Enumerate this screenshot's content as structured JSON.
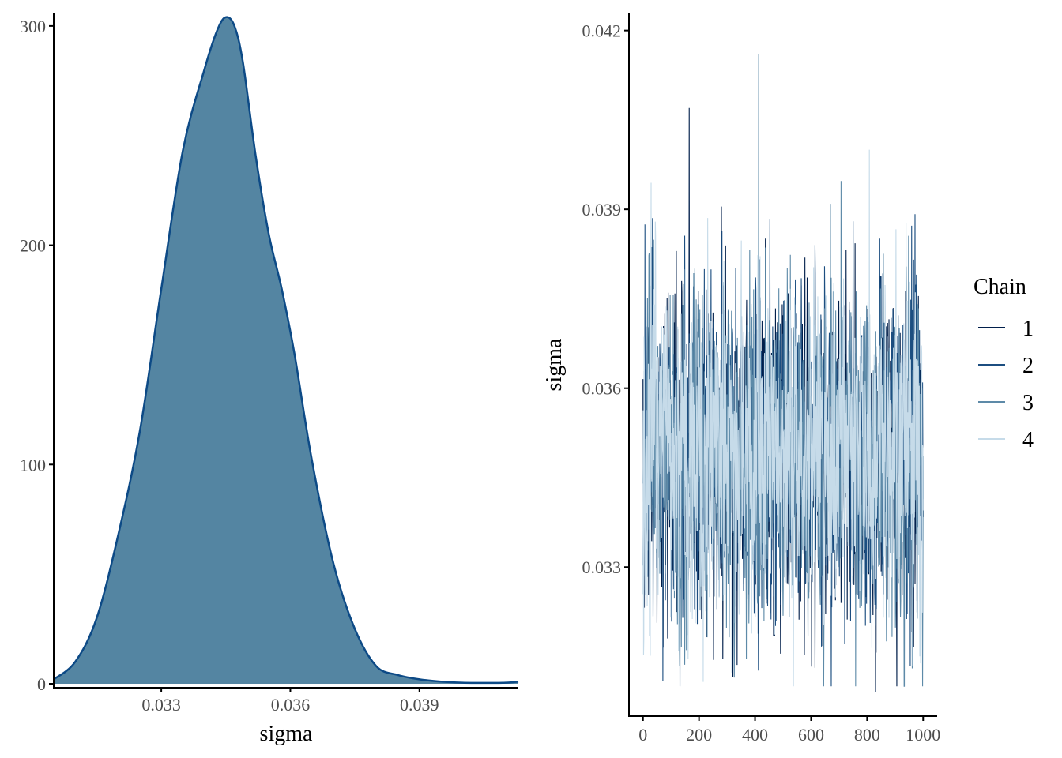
{
  "chart_data": [
    {
      "type": "area",
      "title": "",
      "xlabel": "sigma",
      "ylabel": "",
      "xlim": [
        0.0305,
        0.0413
      ],
      "ylim": [
        0,
        305
      ],
      "xticks": [
        0.033,
        0.036,
        0.039
      ],
      "xtick_labels": [
        "0.033",
        "0.036",
        "0.039"
      ],
      "yticks": [
        0,
        100,
        200,
        300
      ],
      "ytick_labels": [
        "0",
        "100",
        "200",
        "300"
      ],
      "grid": false,
      "fill_color": "#5485a2",
      "line_color": "#0d4a86",
      "x": [
        0.0305,
        0.031,
        0.0315,
        0.032,
        0.0325,
        0.033,
        0.0335,
        0.034,
        0.0343,
        0.0345,
        0.0347,
        0.0349,
        0.0352,
        0.0355,
        0.0358,
        0.0361,
        0.0365,
        0.037,
        0.0375,
        0.038,
        0.0385,
        0.039,
        0.0395,
        0.04,
        0.0405,
        0.041,
        0.0413
      ],
      "values": [
        2,
        10,
        30,
        68,
        115,
        180,
        243,
        280,
        298,
        304,
        300,
        283,
        240,
        205,
        180,
        150,
        102,
        55,
        25,
        8,
        4,
        2,
        1,
        0.5,
        0.4,
        0.5,
        1
      ]
    },
    {
      "type": "line",
      "title": "",
      "xlabel": "",
      "ylabel": "sigma",
      "xlim": [
        -50,
        1050
      ],
      "ylim": [
        0.0305,
        0.0423
      ],
      "xticks": [
        0,
        200,
        400,
        600,
        800,
        1000
      ],
      "xtick_labels": [
        "0",
        "200",
        "400",
        "600",
        "800",
        "1000"
      ],
      "yticks": [
        0.033,
        0.036,
        0.039,
        0.042
      ],
      "ytick_labels": [
        "0.033",
        "0.036",
        "0.039",
        "0.042"
      ],
      "grid": false,
      "iterations": 1000,
      "center": 0.0349,
      "spread": 0.00135,
      "legend": {
        "title": "Chain",
        "placement": "right",
        "entries": [
          {
            "label": "1",
            "color": "#011f4b"
          },
          {
            "label": "2",
            "color": "#1c4e80"
          },
          {
            "label": "3",
            "color": "#5d8aa8"
          },
          {
            "label": "4",
            "color": "#c6dbe9"
          }
        ]
      },
      "spikes": [
        {
          "chain": "1",
          "x": 165,
          "y": 0.0407
        },
        {
          "chain": "3",
          "x": 413,
          "y": 0.0416
        },
        {
          "chain": "4",
          "x": 808,
          "y": 0.04
        },
        {
          "chain": "1",
          "x": 830,
          "y": 0.0309
        }
      ]
    }
  ]
}
